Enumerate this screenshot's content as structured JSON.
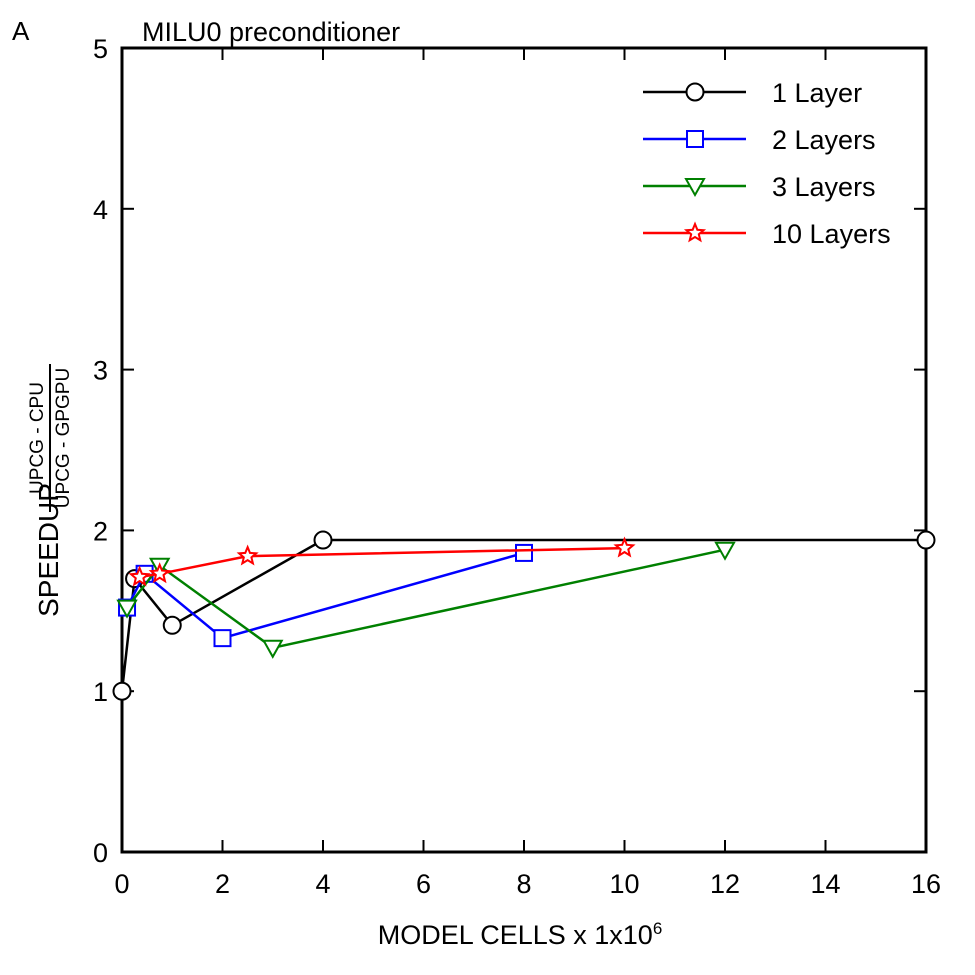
{
  "panel_label": "A",
  "chart_data": {
    "type": "line",
    "title": "MILU0 preconditioner",
    "xlabel_main": "MODEL CELLS x 1x10",
    "xlabel_sup": "6",
    "ylabel_main": "SPEEDUP",
    "ylabel_fraction_numerator": "UPCG - CPU",
    "ylabel_fraction_denominator": "UPCG - GPGPU",
    "xlim": [
      0,
      16
    ],
    "ylim": [
      0,
      5
    ],
    "xticks": [
      0,
      2,
      4,
      6,
      8,
      10,
      12,
      14,
      16
    ],
    "yticks": [
      0,
      1,
      2,
      3,
      4,
      5
    ],
    "grid": false,
    "legend_position": "top-right",
    "series": [
      {
        "name": "1 Layer",
        "color": "#000000",
        "marker": "circle",
        "x": [
          0.0,
          0.25,
          1.0,
          4.0,
          16.0
        ],
        "y": [
          1.0,
          1.7,
          1.41,
          1.94,
          1.94
        ]
      },
      {
        "name": "2 Layers",
        "color": "#0000ff",
        "marker": "square",
        "x": [
          0.1,
          0.45,
          2.0,
          8.0
        ],
        "y": [
          1.52,
          1.73,
          1.33,
          1.86
        ]
      },
      {
        "name": "3 Layers",
        "color": "#008000",
        "marker": "triangle-down",
        "x": [
          0.1,
          0.75,
          3.0,
          12.0
        ],
        "y": [
          1.52,
          1.78,
          1.27,
          1.88
        ]
      },
      {
        "name": "10 Layers",
        "color": "#ff0000",
        "marker": "star",
        "x": [
          0.35,
          0.75,
          2.5,
          10.0
        ],
        "y": [
          1.71,
          1.73,
          1.84,
          1.89
        ]
      }
    ]
  }
}
